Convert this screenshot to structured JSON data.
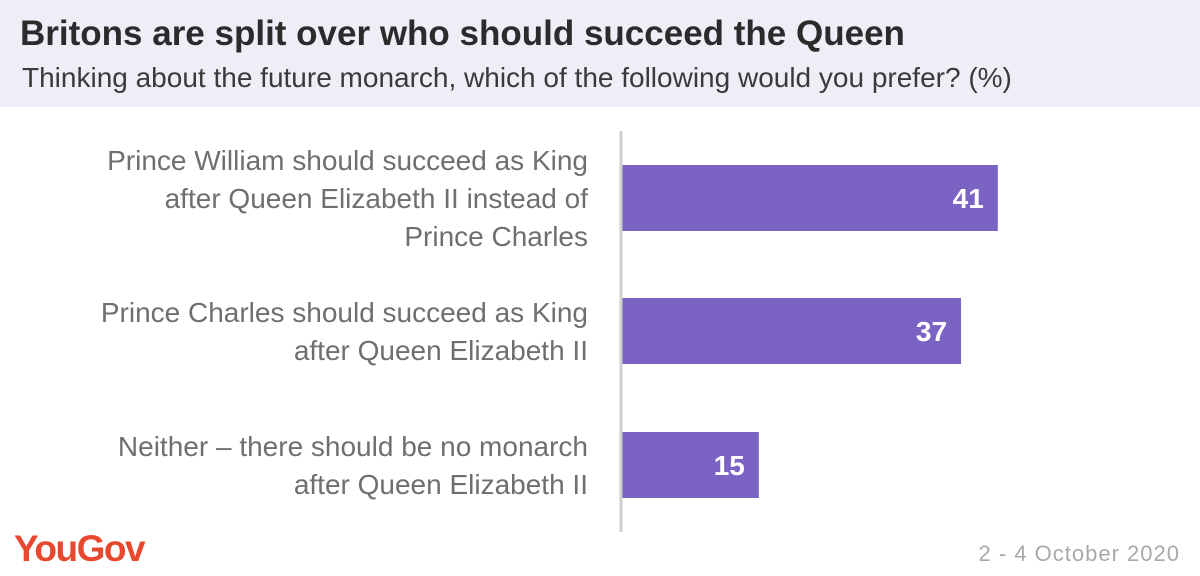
{
  "header": {
    "title": "Britons are split over who should succeed the Queen",
    "subtitle": "Thinking about the future monarch, which of the following would you prefer? (%)"
  },
  "chart_data": {
    "type": "bar",
    "orientation": "horizontal",
    "categories": [
      [
        "Prince William should succeed as King",
        "after Queen Elizabeth II instead of",
        "Prince Charles"
      ],
      [
        "Prince Charles should succeed as King",
        "after Queen Elizabeth II"
      ],
      [
        "Neither – there should be no monarch",
        "after Queen Elizabeth II"
      ]
    ],
    "values": [
      41,
      37,
      15
    ],
    "value_labels": [
      "41",
      "37",
      "15"
    ],
    "bar_color": "#7b63c3",
    "axis_color": "#cfcfcf",
    "xlim": [
      0,
      63
    ],
    "grid": false,
    "legend": "none"
  },
  "footer": {
    "logo": "YouGov",
    "date": "2 - 4 October 2020",
    "logo_color": "#e8482e"
  }
}
